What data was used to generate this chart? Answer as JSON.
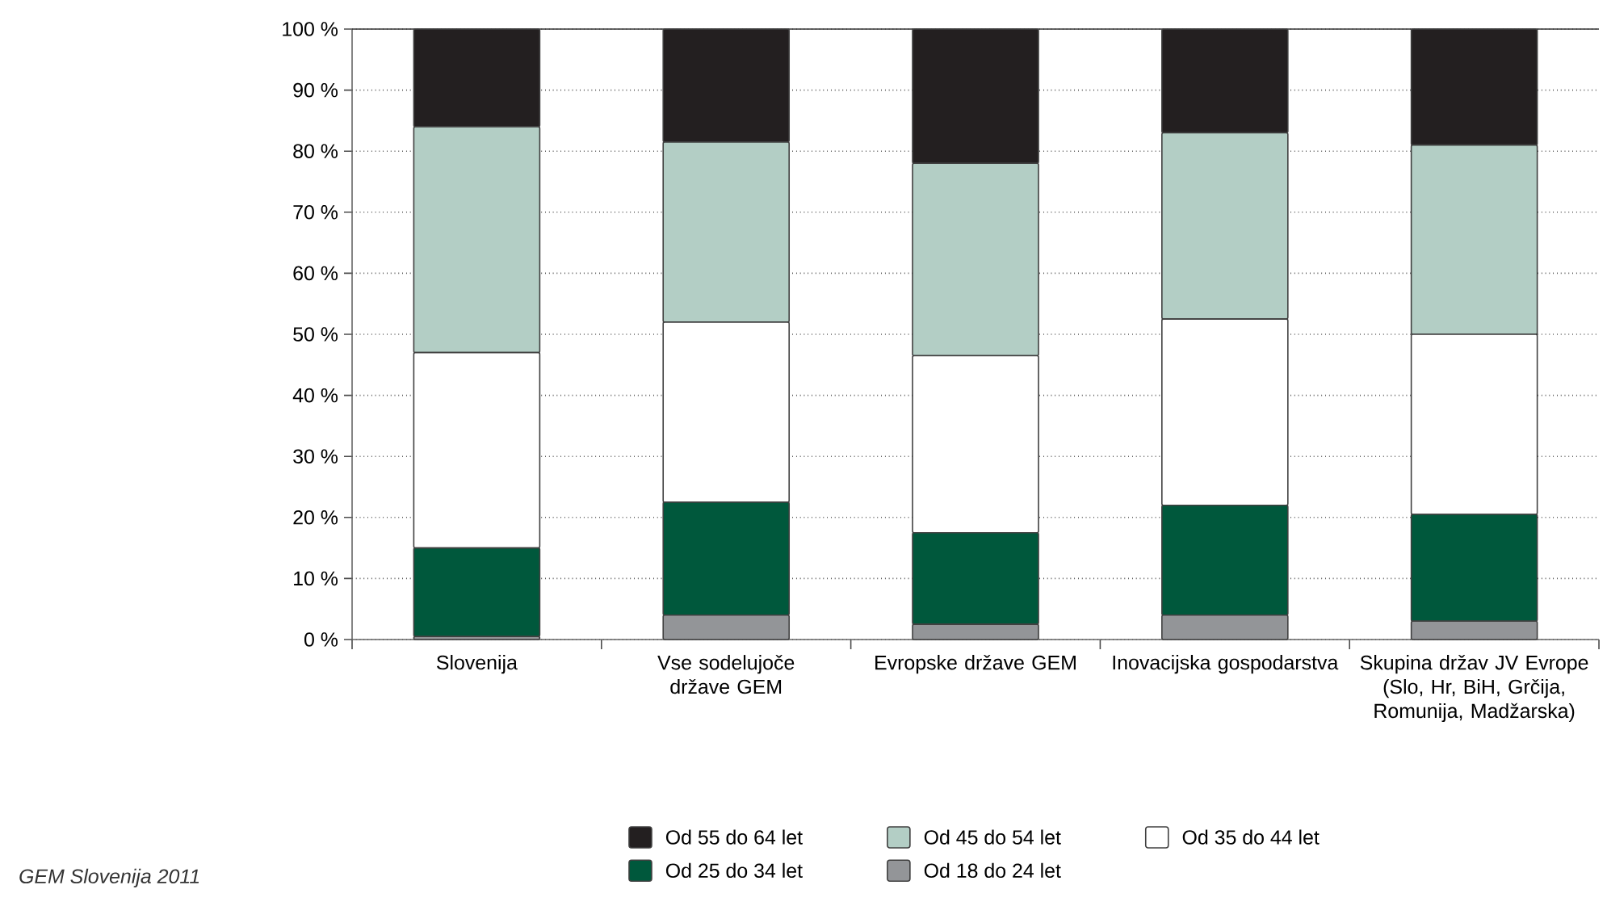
{
  "chart_data": {
    "type": "bar",
    "stacked": true,
    "categories": [
      "Slovenija",
      "Vse sodelujoče države GEM",
      "Evropske države GEM",
      "Inovacijska gospodarstva",
      "Skupina držav JV Evrope (Slo, Hr, BiH, Grčija, Romunija, Madžarska)"
    ],
    "series": [
      {
        "name": "Od 18 do 24 let",
        "color": "#939598",
        "values": [
          0.5,
          4,
          2.5,
          4,
          3
        ]
      },
      {
        "name": "Od 25 do 34 let",
        "color": "#00583c",
        "values": [
          14.5,
          18.5,
          15,
          18,
          17.5
        ]
      },
      {
        "name": "Od 35 do 44 let",
        "color": "#ffffff",
        "values": [
          32,
          29.5,
          29,
          30.5,
          29.5
        ]
      },
      {
        "name": "Od 45 do 54 let",
        "color": "#b3cec5",
        "values": [
          37,
          29.5,
          31.5,
          30.5,
          31
        ]
      },
      {
        "name": "Od 55 do 64 let",
        "color": "#231f20",
        "values": [
          16,
          18.5,
          22,
          17,
          19
        ]
      }
    ],
    "ylim": [
      0,
      100
    ],
    "yticks": [
      {
        "value": 0,
        "label": "0 %"
      },
      {
        "value": 10,
        "label": "10 %"
      },
      {
        "value": 20,
        "label": "20 %"
      },
      {
        "value": 30,
        "label": "30 %"
      },
      {
        "value": 40,
        "label": "40 %"
      },
      {
        "value": 50,
        "label": "50 %"
      },
      {
        "value": 60,
        "label": "60 %"
      },
      {
        "value": 70,
        "label": "70 %"
      },
      {
        "value": 80,
        "label": "80 %"
      },
      {
        "value": 90,
        "label": "90 %"
      },
      {
        "value": 100,
        "label": "100 %"
      }
    ],
    "grid": "y",
    "legend": "bottom",
    "annotations": [
      "GEM Slovenija 2011"
    ]
  }
}
